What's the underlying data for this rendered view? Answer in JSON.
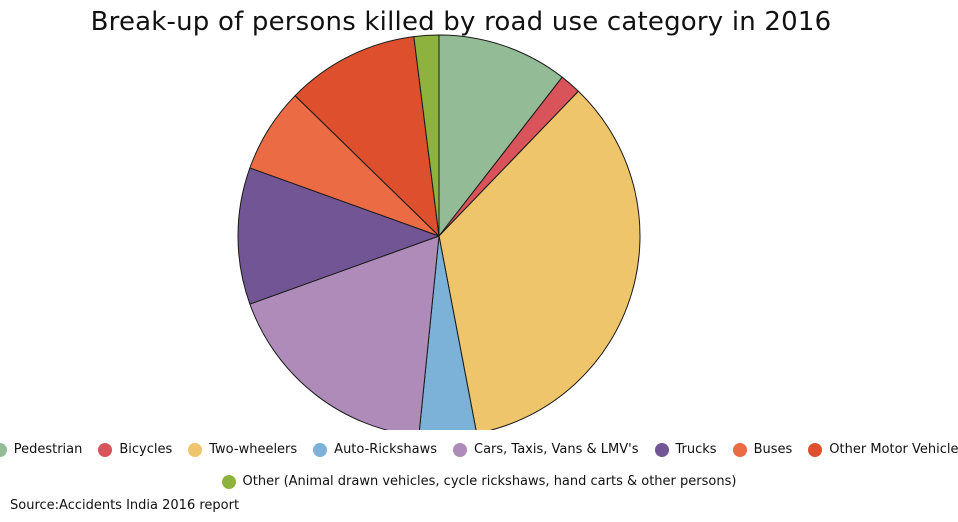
{
  "chart_data": {
    "type": "pie",
    "title": "Break-up of persons killed by road use category in 2016",
    "start_angle_deg": 0,
    "direction": "clockwise",
    "slices": [
      {
        "label": "Pedestrian",
        "value": 10.5,
        "color": "#93BB96"
      },
      {
        "label": "Bicycles",
        "value": 1.7,
        "color": "#D9535A"
      },
      {
        "label": "Two-wheelers",
        "value": 34.8,
        "color": "#EEC56B"
      },
      {
        "label": "Auto-Rickshaws",
        "value": 4.6,
        "color": "#7CB1D8"
      },
      {
        "label": "Cars, Taxis, Vans & LMV's",
        "value": 17.9,
        "color": "#AF8BB9"
      },
      {
        "label": "Trucks",
        "value": 11.0,
        "color": "#725594"
      },
      {
        "label": "Buses",
        "value": 6.8,
        "color": "#EB6B45"
      },
      {
        "label": "Other Motor Vehicles",
        "value": 10.7,
        "color": "#DD4F2D"
      },
      {
        "label": "Other (Animal drawn vehicles, cycle rickshaws, hand carts & other persons)",
        "value": 2.0,
        "color": "#8DB33E"
      }
    ],
    "legend_position": "bottom"
  },
  "legend": {
    "row1": [
      {
        "label": "Pedestrian",
        "color": "#93BB96"
      },
      {
        "label": "Bicycles",
        "color": "#D9535A"
      },
      {
        "label": "Two-wheelers",
        "color": "#EEC56B"
      },
      {
        "label": "Auto-Rickshaws",
        "color": "#7CB1D8"
      },
      {
        "label": "Cars, Taxis, Vans & LMV's",
        "color": "#AF8BB9"
      },
      {
        "label": "Trucks",
        "color": "#725594"
      },
      {
        "label": "Buses",
        "color": "#EB6B45"
      },
      {
        "label": "Other Motor Vehicles",
        "color": "#DD4F2D"
      }
    ],
    "row2": [
      {
        "label": "Other (Animal drawn vehicles, cycle rickshaws, hand carts & other persons)",
        "color": "#8DB33E"
      }
    ]
  },
  "source": "Source:Accidents India 2016 report"
}
